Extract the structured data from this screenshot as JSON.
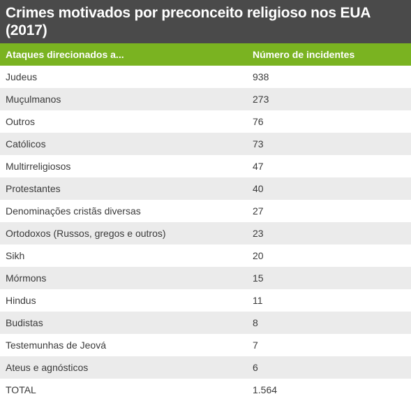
{
  "title": "Crimes motivados por preconceito religioso nos EUA (2017)",
  "chart_data": {
    "type": "table",
    "title": "Crimes motivados por preconceito religioso nos EUA (2017)",
    "columns": [
      "Ataques direcionados a...",
      "Número de incidentes"
    ],
    "rows": [
      {
        "label": "Judeus",
        "value": "938"
      },
      {
        "label": "Muçulmanos",
        "value": "273"
      },
      {
        "label": "Outros",
        "value": "76"
      },
      {
        "label": "Católicos",
        "value": "73"
      },
      {
        "label": "Multirreligiosos",
        "value": "47"
      },
      {
        "label": "Protestantes",
        "value": "40"
      },
      {
        "label": "Denominações cristãs diversas",
        "value": "27"
      },
      {
        "label": "Ortodoxos (Russos, gregos e outros)",
        "value": "23"
      },
      {
        "label": "Sikh",
        "value": "20"
      },
      {
        "label": "Mórmons",
        "value": "15"
      },
      {
        "label": "Hindus",
        "value": "11"
      },
      {
        "label": "Budistas",
        "value": "8"
      },
      {
        "label": "Testemunhas de Jeová",
        "value": "7"
      },
      {
        "label": "Ateus e agnósticos",
        "value": "6"
      },
      {
        "label": "TOTAL",
        "value": "1.564"
      }
    ]
  },
  "colors": {
    "title_background": "#4a4a4a",
    "header_background": "#7ab321",
    "row_alt_background": "#ebebeb",
    "text": "#3a3a3a"
  }
}
